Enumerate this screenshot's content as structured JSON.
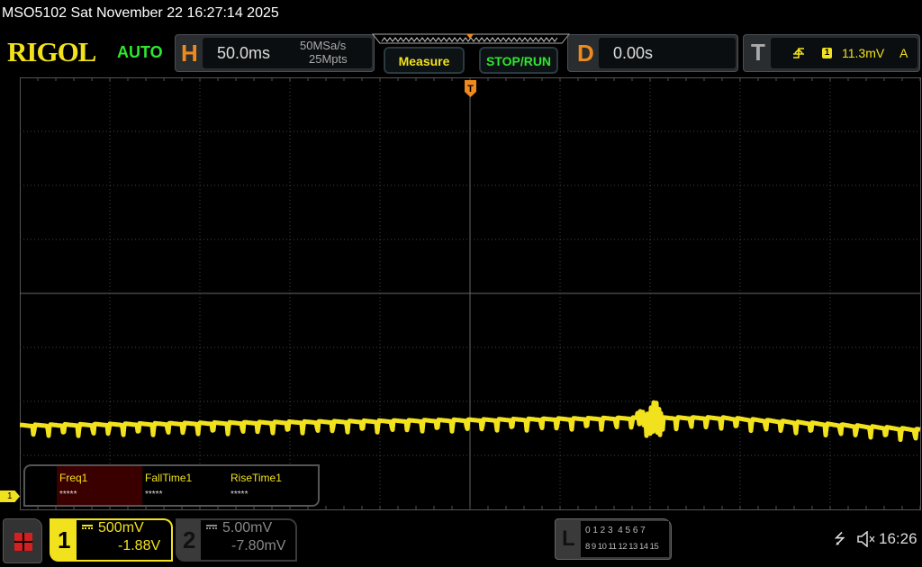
{
  "titlebar": {
    "text": "MSO5102  Sat November 22 16:27:14 2025"
  },
  "brand": {
    "logo": "RIGOL",
    "mode": "AUTO"
  },
  "horizontal": {
    "letter": "H",
    "timebase": "50.0ms",
    "sample_rate": "50MSa/s",
    "memory_depth": "25Mpts"
  },
  "buttons": {
    "measure": "Measure",
    "stop_run": "STOP/RUN"
  },
  "delay": {
    "letter": "D",
    "value": "0.00s"
  },
  "trigger": {
    "letter": "T",
    "edge_icon": "rising-edge-icon",
    "source": "1",
    "level": "11.3mV",
    "sweep": "A"
  },
  "measurements": [
    {
      "label": "Freq1",
      "value": "*****"
    },
    {
      "label": "FallTime1",
      "value": "*****"
    },
    {
      "label": "RiseTime1",
      "value": "*****"
    }
  ],
  "channel1": {
    "number": "1",
    "coupling_icon": "dc-coupling-icon",
    "scale": "500mV",
    "offset": "-1.88V",
    "marker": "1",
    "color": "#f2e21d"
  },
  "channel2": {
    "number": "2",
    "coupling_icon": "dc-coupling-icon",
    "scale": "5.00mV",
    "offset": "-7.80mV"
  },
  "logic": {
    "letter": "L",
    "row1": "0 1 2 3  4 5 6 7",
    "row2": "8 9 10 11 12 13 14 15"
  },
  "status": {
    "usb_icon": "usb-icon",
    "sound_icon": "speaker-muted-icon",
    "clock": "16:26"
  },
  "colors": {
    "trace": "#f2e21d",
    "accent_orange": "#f08a1c",
    "green": "#2ee82e"
  }
}
